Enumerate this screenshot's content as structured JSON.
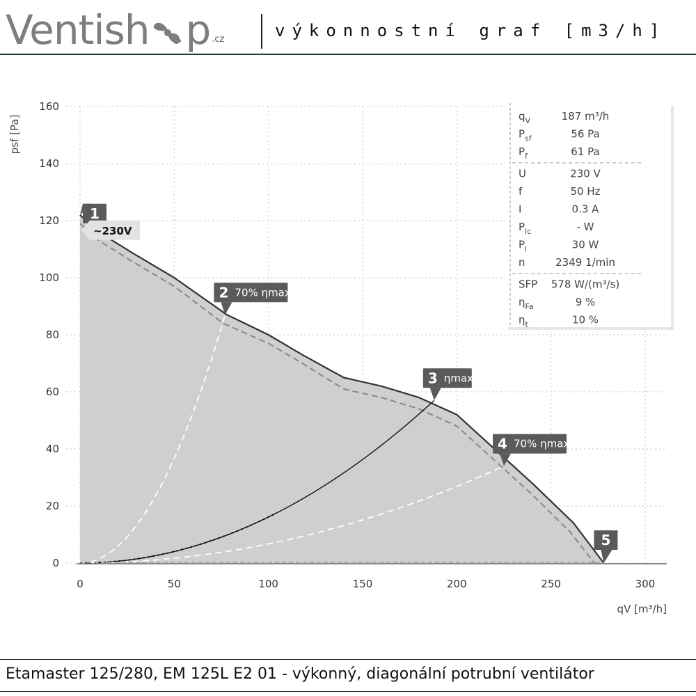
{
  "header": {
    "logo_left": "Ventish",
    "logo_right": "p",
    "logo_suffix": ".cz",
    "title": "výkonnostní graf [m3/h]"
  },
  "footer": {
    "product": "Etamaster 125/280, EM 125L E2 01 - výkonný, diagonální potrubní ventilátor"
  },
  "chart_data": {
    "type": "line",
    "xlabel": "qV [m³/h]",
    "ylabel": "psf [Pa]",
    "xlim": [
      0,
      300
    ],
    "ylim": [
      0,
      160
    ],
    "xticks": [
      0,
      50,
      100,
      150,
      200,
      250,
      300
    ],
    "yticks": [
      0,
      20,
      40,
      60,
      80,
      100,
      120,
      140,
      160
    ],
    "grid": true,
    "series": [
      {
        "label": "~230V",
        "style": "solid",
        "x": [
          0,
          10,
          27,
          50,
          78,
          100,
          118,
          140,
          160,
          180,
          200,
          220,
          240,
          262,
          278
        ],
        "y": [
          122,
          116,
          109,
          100,
          87,
          80,
          73,
          65,
          62,
          58,
          52,
          40,
          28,
          14,
          0
        ]
      },
      {
        "style": "dashed",
        "x": [
          0,
          10,
          27,
          50,
          76,
          100,
          118,
          140,
          160,
          180,
          200,
          220,
          240,
          260,
          273
        ],
        "y": [
          119,
          113,
          106,
          97,
          84,
          77,
          70,
          61,
          58,
          54,
          48,
          36,
          24,
          11,
          0
        ]
      }
    ],
    "system_curves": [
      {
        "label": "70% ηmax",
        "style": "dashed-white",
        "end": [
          77,
          87
        ]
      },
      {
        "label": "ηmax",
        "style": "solid-dark",
        "end": [
          188,
          57
        ]
      },
      {
        "label": "70% ηmax",
        "style": "dashed-white",
        "end": [
          225,
          34
        ]
      }
    ],
    "markers": [
      {
        "number": "1",
        "x": 0,
        "y": 122
      },
      {
        "number": "2",
        "text": "70% ηmax",
        "x": 77,
        "y": 87
      },
      {
        "number": "3",
        "text": "ηmax",
        "x": 188,
        "y": 57
      },
      {
        "number": "4",
        "text": "70% ηmax",
        "x": 225,
        "y": 34
      },
      {
        "number": "5",
        "x": 278,
        "y": 0
      }
    ],
    "voltage_label": "~230V",
    "info_table": [
      {
        "symbol": "q",
        "sub": "V",
        "value": "187 m³/h"
      },
      {
        "symbol": "P",
        "sub": "sf",
        "value": "56 Pa"
      },
      {
        "symbol": "P",
        "sub": "f",
        "value": "61 Pa",
        "divider_after": true
      },
      {
        "symbol": "U",
        "sub": "",
        "value": "230 V"
      },
      {
        "symbol": "f",
        "sub": "",
        "value": "50 Hz"
      },
      {
        "symbol": "I",
        "sub": "",
        "value": "0.3 A"
      },
      {
        "symbol": "P",
        "sub": "lc",
        "value": "- W"
      },
      {
        "symbol": "P",
        "sub": "l",
        "value": "30 W"
      },
      {
        "symbol": "n",
        "sub": "",
        "value": "2349 1/min",
        "divider_after": true
      },
      {
        "symbol": "SFP",
        "sub": "",
        "value": "578 W/(m³/s)"
      },
      {
        "symbol": "η",
        "sub": "Fa",
        "value": "9 %"
      },
      {
        "symbol": "η",
        "sub": "t",
        "value": "10 %"
      }
    ],
    "colors": {
      "fill": "#cfcfcf",
      "curve": "#333333",
      "dashed": "#888888",
      "marker": "#5a5a5a",
      "grid": "#d6d6d6"
    }
  }
}
